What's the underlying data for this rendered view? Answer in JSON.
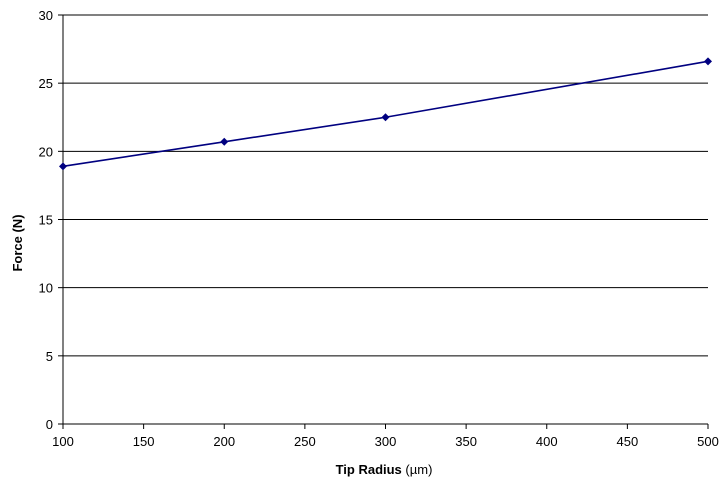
{
  "chart_data": {
    "type": "line",
    "title": "",
    "xlabel": "Tip Radius",
    "xlabel_unit": "(µm)",
    "ylabel": "Force (N)",
    "xlim": [
      100,
      500
    ],
    "ylim": [
      0,
      30
    ],
    "x_ticks": [
      "100",
      "150",
      "200",
      "250",
      "300",
      "350",
      "400",
      "450",
      "500"
    ],
    "y_ticks": [
      "0",
      "5",
      "10",
      "15",
      "20",
      "25",
      "30"
    ],
    "grid": "horizontal",
    "legend": "none",
    "series": [
      {
        "x": [
          100,
          200,
          300,
          500
        ],
        "values": [
          18.9,
          20.7,
          22.5,
          26.6
        ],
        "color": "#000080",
        "marker": "diamond"
      }
    ]
  }
}
